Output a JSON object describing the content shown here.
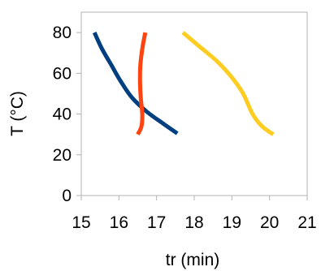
{
  "chart_data": {
    "type": "line",
    "xlabel": "tr (min)",
    "ylabel": "T (°C)",
    "xlim": [
      15,
      21
    ],
    "ylim": [
      0,
      90
    ],
    "x_ticks": [
      15,
      16,
      17,
      18,
      19,
      20,
      21
    ],
    "y_ticks": [
      0,
      20,
      40,
      60,
      80
    ],
    "grid": false,
    "series": [
      {
        "color": "#003f7f",
        "points": [
          [
            15.35,
            80
          ],
          [
            15.55,
            72
          ],
          [
            15.8,
            64
          ],
          [
            16.05,
            56
          ],
          [
            16.35,
            48
          ],
          [
            16.75,
            41
          ],
          [
            17.2,
            35
          ],
          [
            17.55,
            30.5
          ]
        ]
      },
      {
        "color": "#ff4411",
        "points": [
          [
            16.7,
            80
          ],
          [
            16.62,
            72
          ],
          [
            16.57,
            64
          ],
          [
            16.56,
            56
          ],
          [
            16.58,
            48
          ],
          [
            16.62,
            40
          ],
          [
            16.6,
            34
          ],
          [
            16.5,
            30
          ]
        ]
      },
      {
        "color": "#ffcc22",
        "points": [
          [
            17.7,
            80
          ],
          [
            18.15,
            73
          ],
          [
            18.6,
            66
          ],
          [
            19.0,
            58
          ],
          [
            19.3,
            50
          ],
          [
            19.55,
            40
          ],
          [
            19.8,
            34
          ],
          [
            20.1,
            30
          ]
        ]
      }
    ]
  }
}
